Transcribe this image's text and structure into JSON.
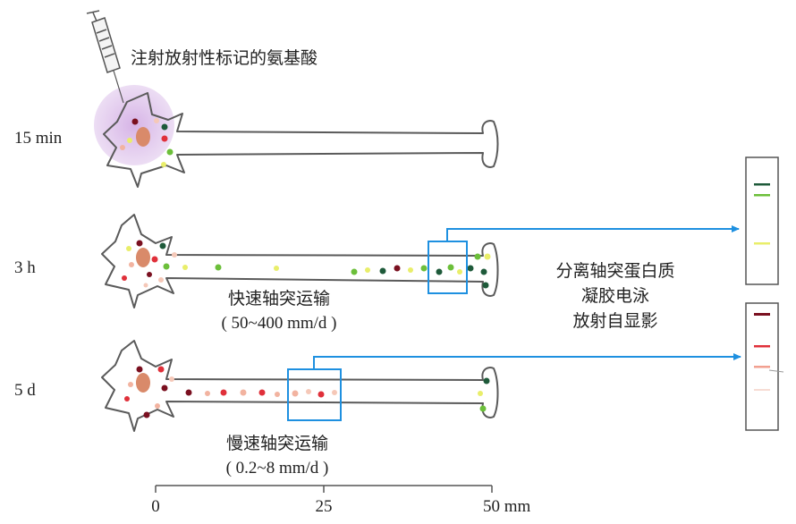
{
  "injection_label": "注射放射性标记的氨基酸",
  "times": {
    "t1": "15 min",
    "t2": "3 h",
    "t3": "5 d"
  },
  "fast_transport": {
    "label": "快速轴突运输",
    "rate": "( 50~400 mm/d )"
  },
  "slow_transport": {
    "label": "慢速轴突运输",
    "rate": "( 0.2~8 mm/d )"
  },
  "analysis_steps": [
    "分离轴突蛋白质",
    "凝胶电泳",
    "放射自显影"
  ],
  "scale": {
    "ticks": [
      "0",
      "25",
      "50 mm"
    ]
  },
  "colors": {
    "outline": "#5a5a5a",
    "arrow": "#1e90e0",
    "injection_halo": "#d7b8e6",
    "dark_red": "#7a1020",
    "dark_green": "#1e5a3a",
    "green": "#6cbf3a",
    "yellow": "#e9ee6a",
    "red": "#e0303a",
    "pink": "#f2b3a0",
    "nucleus": "#d98a6a"
  }
}
